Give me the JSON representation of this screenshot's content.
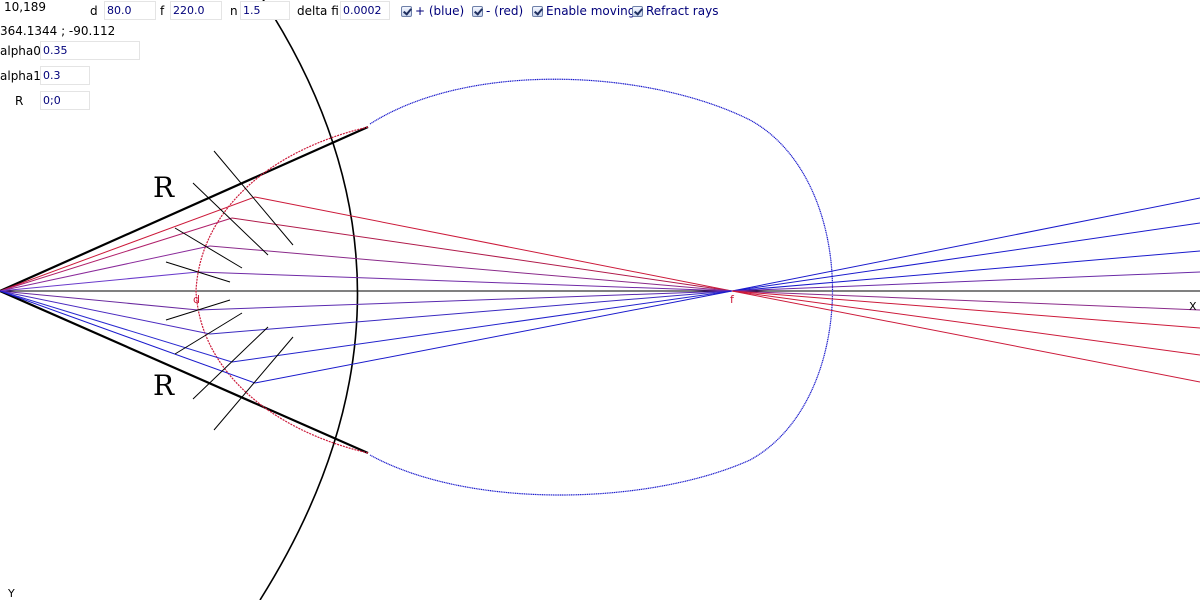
{
  "status": {
    "mouse_coords": "10,189",
    "world_coords": "364.1344 ; -90.112"
  },
  "controls": {
    "d": {
      "label": "d",
      "value": "80.0"
    },
    "f": {
      "label": "f",
      "value": "220.0"
    },
    "n": {
      "label": "n",
      "value": "1.5"
    },
    "delta_fi": {
      "label": "delta fi",
      "value": "0.0002"
    },
    "alpha0": {
      "label": "alpha0",
      "value": "0.35"
    },
    "alpha1": {
      "label": "alpha1",
      "value": "0.3"
    },
    "R": {
      "label": "R",
      "value": "0;0"
    }
  },
  "checkboxes": [
    {
      "label": "+ (blue)",
      "checked": true
    },
    {
      "label": "- (red)",
      "checked": true
    },
    {
      "label": "Enable moving",
      "checked": true
    },
    {
      "label": "Refract rays",
      "checked": true
    }
  ],
  "canvas_labels": {
    "R_upper": "R",
    "R_lower": "R",
    "d": "d",
    "f": "f",
    "x_axis": "X",
    "y_axis": "Y"
  },
  "colors": {
    "blue": "#1a1acc",
    "red": "#cc1a3a",
    "black": "#000000",
    "field_text": "#00007a"
  }
}
